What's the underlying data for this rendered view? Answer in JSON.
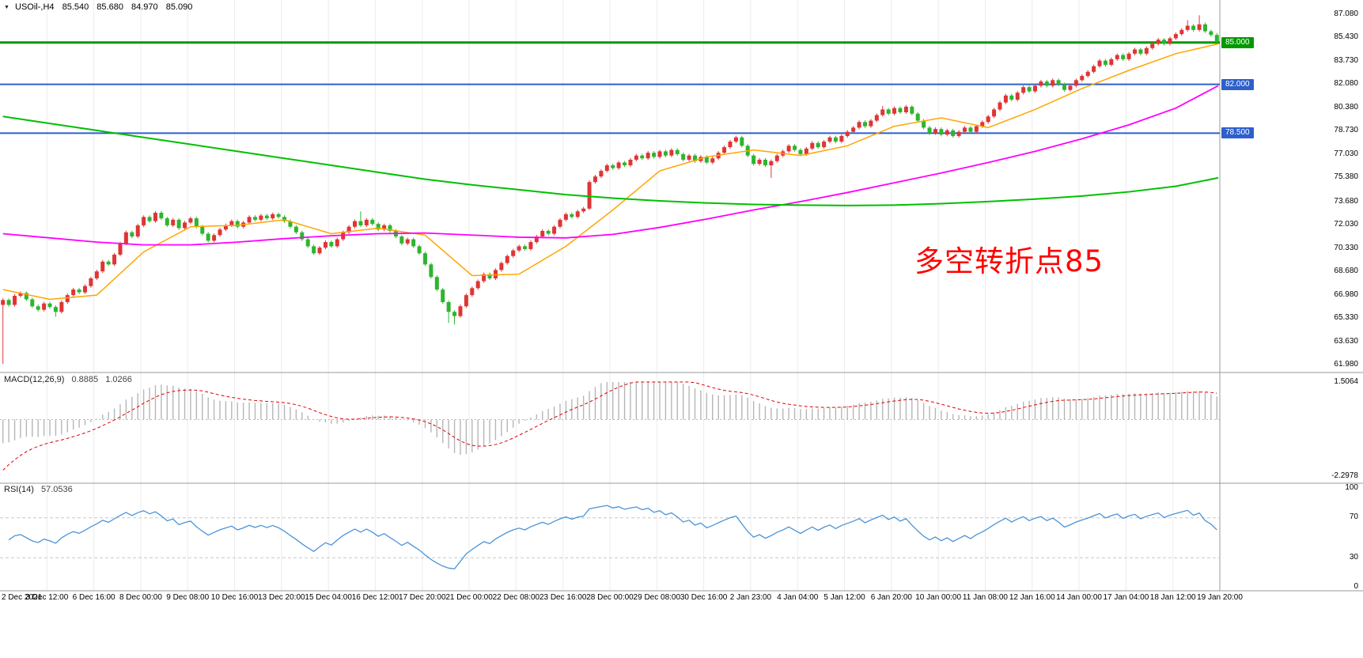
{
  "header": {
    "dropdown_icon": "▼",
    "symbol_period": "USOil-,H4",
    "open": "85.540",
    "high": "85.680",
    "low": "84.970",
    "close": "85.090"
  },
  "annotation": {
    "text": "多空转折点85",
    "color": "#FF0000"
  },
  "hlines": [
    {
      "label": "85.000",
      "price": 85.0,
      "color": "#009900",
      "width": 3
    },
    {
      "label": "82.000",
      "price": 82.0,
      "color": "#2E5FCC",
      "width": 2
    },
    {
      "label": "78.500",
      "price": 78.5,
      "color": "#2E5FCC",
      "width": 2
    }
  ],
  "price_axis": {
    "side": "right",
    "ticks": [
      {
        "label": "87.080",
        "value": 87.08
      },
      {
        "label": "85.430",
        "value": 85.43
      },
      {
        "label": "83.730",
        "value": 83.73
      },
      {
        "label": "82.080",
        "value": 82.08
      },
      {
        "label": "80.380",
        "value": 80.38
      },
      {
        "label": "78.730",
        "value": 78.73
      },
      {
        "label": "77.030",
        "value": 77.03
      },
      {
        "label": "75.380",
        "value": 75.38
      },
      {
        "label": "73.680",
        "value": 73.68
      },
      {
        "label": "72.030",
        "value": 72.03
      },
      {
        "label": "70.330",
        "value": 70.33
      },
      {
        "label": "68.680",
        "value": 68.68
      },
      {
        "label": "66.980",
        "value": 66.98
      },
      {
        "label": "65.330",
        "value": 65.33
      },
      {
        "label": "63.630",
        "value": 63.63
      },
      {
        "label": "61.980",
        "value": 61.98
      }
    ]
  },
  "time_axis": {
    "labels": [
      "2 Dec 2021",
      "3 Dec 12:00",
      "6 Dec 16:00",
      "8 Dec 00:00",
      "9 Dec 08:00",
      "10 Dec 16:00",
      "13 Dec 20:00",
      "15 Dec 04:00",
      "16 Dec 12:00",
      "17 Dec 20:00",
      "21 Dec 00:00",
      "22 Dec 08:00",
      "23 Dec 16:00",
      "28 Dec 00:00",
      "29 Dec 08:00",
      "30 Dec 16:00",
      "2 Jan 23:00",
      "4 Jan 04:00",
      "5 Jan 12:00",
      "6 Jan 20:00",
      "10 Jan 00:00",
      "11 Jan 08:00",
      "12 Jan 16:00",
      "14 Jan 00:00",
      "17 Jan 04:00",
      "18 Jan 12:00",
      "19 Jan 20:00"
    ]
  },
  "indicators": {
    "macd": {
      "name": "MACD(12,26,9)",
      "value_main": "0.8885",
      "value_signal": "1.0266",
      "axis_max": "1.5064",
      "axis_min": "-2.2978",
      "ylim": [
        -2.2978,
        1.5064
      ],
      "histogram_color": "#B6B6B6",
      "signal_color": "#E00000"
    },
    "rsi": {
      "name": "RSI(14)",
      "value": "57.0536",
      "axis": [
        "100",
        "70",
        "30",
        "0"
      ],
      "levels": [
        70,
        30
      ],
      "ylim": [
        0,
        100
      ],
      "line_color": "#4A94D8"
    }
  },
  "chart_data": {
    "type": "candlestick",
    "symbol": "USOil-",
    "timeframe": "H4",
    "ylim": [
      61.98,
      87.08
    ],
    "current_ohlc": {
      "open": 85.54,
      "high": 85.68,
      "low": 84.97,
      "close": 85.09
    },
    "colors": {
      "up": "#DF3535",
      "down": "#2FB42F"
    },
    "candles": {
      "first_open": 66.2,
      "closes": [
        66.55,
        66.2,
        66.85,
        67.05,
        66.6,
        66.1,
        65.85,
        66.3,
        66.05,
        65.7,
        66.4,
        66.9,
        67.3,
        67.1,
        67.55,
        68.1,
        68.6,
        69.3,
        69.1,
        69.8,
        70.6,
        71.4,
        71.1,
        71.9,
        72.5,
        72.2,
        72.8,
        72.4,
        71.9,
        72.3,
        71.7,
        72.1,
        72.4,
        71.8,
        71.3,
        70.8,
        71.2,
        71.6,
        71.9,
        72.2,
        71.8,
        72.1,
        72.5,
        72.3,
        72.6,
        72.4,
        72.7,
        72.5,
        72.2,
        71.8,
        71.4,
        70.9,
        70.4,
        69.9,
        70.3,
        70.7,
        70.4,
        70.9,
        71.4,
        71.8,
        72.2,
        71.9,
        72.3,
        72.0,
        71.6,
        71.9,
        71.5,
        71.1,
        70.6,
        70.9,
        70.4,
        69.9,
        69.1,
        68.2,
        67.3,
        66.4,
        65.7,
        65.4,
        66.1,
        66.9,
        67.4,
        67.9,
        68.4,
        68.1,
        68.7,
        69.2,
        69.7,
        70.1,
        70.4,
        70.2,
        70.7,
        71.1,
        71.5,
        71.3,
        71.8,
        72.3,
        72.7,
        72.5,
        72.9,
        73.1,
        75.0,
        75.4,
        75.8,
        76.2,
        76.0,
        76.4,
        76.2,
        76.6,
        76.9,
        76.7,
        77.1,
        76.8,
        77.2,
        76.9,
        77.3,
        77.0,
        76.6,
        76.9,
        76.5,
        76.8,
        76.4,
        76.7,
        77.1,
        77.5,
        77.9,
        78.2,
        77.6,
        76.9,
        76.3,
        76.6,
        76.2,
        76.5,
        76.9,
        77.2,
        77.6,
        77.3,
        77.0,
        77.4,
        77.8,
        77.5,
        77.9,
        78.2,
        77.9,
        78.3,
        78.6,
        78.9,
        79.3,
        79.0,
        79.4,
        79.8,
        80.2,
        79.9,
        80.3,
        80.0,
        80.4,
        79.9,
        79.4,
        78.9,
        78.5,
        78.8,
        78.4,
        78.7,
        78.3,
        78.6,
        78.9,
        78.6,
        79.0,
        79.3,
        79.7,
        80.2,
        80.7,
        81.2,
        80.9,
        81.4,
        81.8,
        81.5,
        81.9,
        82.2,
        81.9,
        82.3,
        82.0,
        81.6,
        81.9,
        82.3,
        82.6,
        82.9,
        83.3,
        83.7,
        83.4,
        83.8,
        84.1,
        83.8,
        84.2,
        84.5,
        84.2,
        84.6,
        84.9,
        85.2,
        84.9,
        85.3,
        85.6,
        85.9,
        86.2,
        85.9,
        86.3,
        85.8,
        85.54,
        85.09
      ],
      "wick_overrides": {
        "0": {
          "low": 61.98
        },
        "9": {
          "low": 65.35
        },
        "61": {
          "high": 72.9
        },
        "76": {
          "low": 64.9
        },
        "77": {
          "low": 64.8
        },
        "100": {
          "low": 73.0
        },
        "131": {
          "low": 75.3
        },
        "150": {
          "high": 80.45
        },
        "202": {
          "high": 86.6
        },
        "204": {
          "high": 86.95
        },
        "207": {
          "high": 85.68,
          "low": 84.97
        }
      }
    },
    "overlays": [
      {
        "name": "ma-fast",
        "color": "#FFA500",
        "width": 1.5,
        "sample_every": 8,
        "values": [
          67.3,
          66.6,
          66.9,
          70.0,
          71.8,
          71.9,
          72.3,
          71.3,
          71.7,
          71.2,
          68.3,
          68.4,
          70.4,
          73.0,
          75.8,
          76.8,
          77.3,
          76.9,
          77.6,
          79.0,
          79.6,
          78.9,
          80.2,
          81.7,
          83.0,
          84.2,
          84.9
        ]
      },
      {
        "name": "ma-mid",
        "color": "#FF00FF",
        "width": 1.8,
        "sample_every": 8,
        "values": [
          71.3,
          71.0,
          70.7,
          70.5,
          70.5,
          70.7,
          70.95,
          71.15,
          71.3,
          71.35,
          71.2,
          71.05,
          71.0,
          71.25,
          71.75,
          72.35,
          73.0,
          73.6,
          74.25,
          74.95,
          75.65,
          76.4,
          77.2,
          78.1,
          79.1,
          80.3,
          81.9
        ]
      },
      {
        "name": "ma-slow",
        "color": "#00C000",
        "width": 2,
        "sample_every": 8,
        "values": [
          79.7,
          79.2,
          78.7,
          78.2,
          77.7,
          77.2,
          76.7,
          76.2,
          75.7,
          75.2,
          74.8,
          74.45,
          74.1,
          73.85,
          73.65,
          73.5,
          73.4,
          73.35,
          73.32,
          73.35,
          73.45,
          73.6,
          73.78,
          74.0,
          74.3,
          74.7,
          75.3
        ]
      }
    ]
  }
}
